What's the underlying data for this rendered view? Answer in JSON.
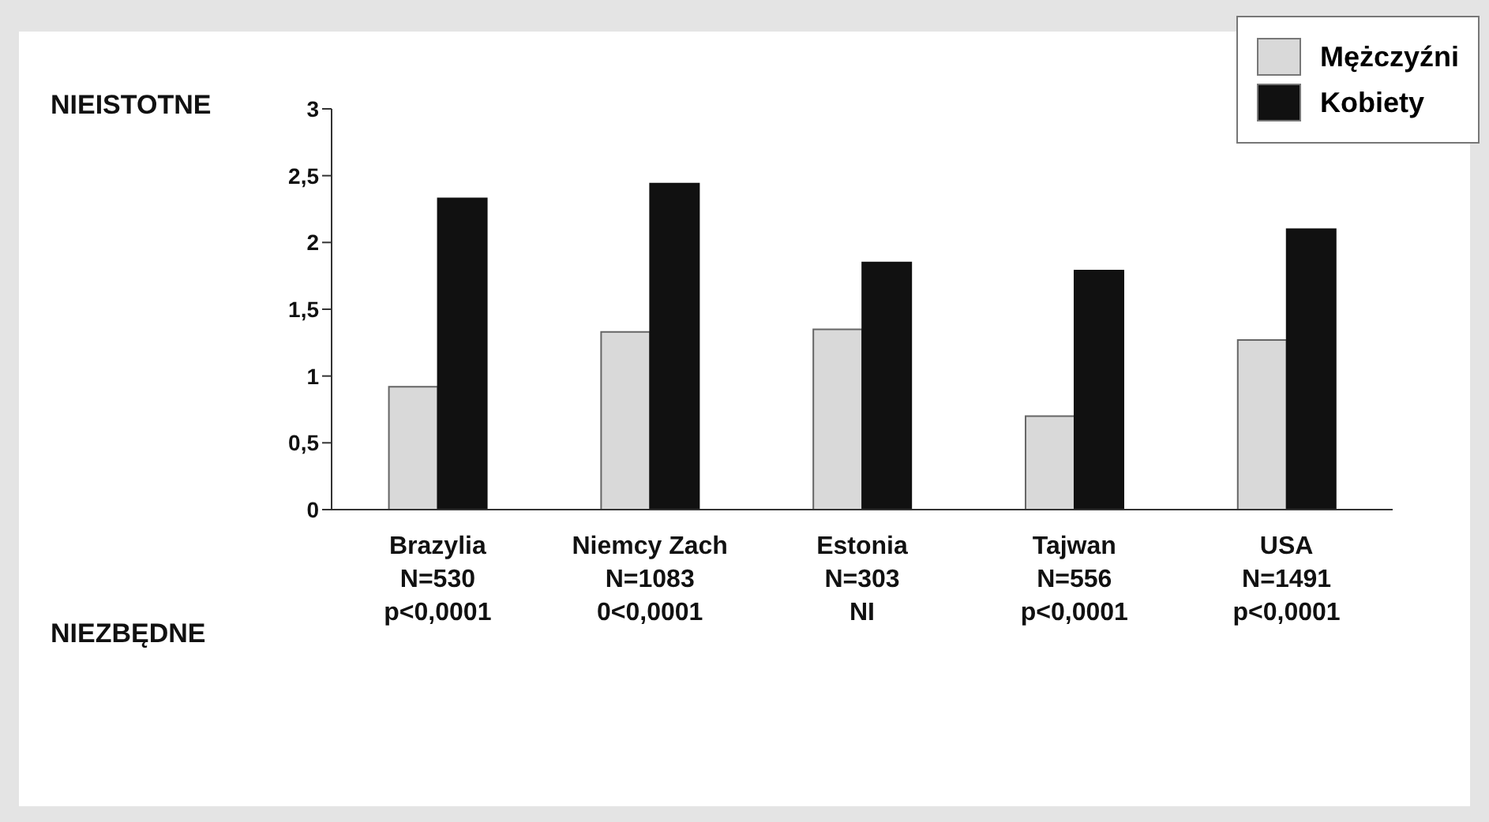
{
  "chart_data": {
    "type": "bar",
    "categories": [
      "Brazylia\nN=530\np<0,0001",
      "Niemcy Zach\nN=1083\n0<0,0001",
      "Estonia\nN=303\nNI",
      "Tajwan\nN=556\np<0,0001",
      "USA\nN=1491\np<0,0001"
    ],
    "series": [
      {
        "name": "Mężczyźni",
        "color": "#d9d9d9",
        "values": [
          0.92,
          1.33,
          1.35,
          0.7,
          1.27
        ]
      },
      {
        "name": "Kobiety",
        "color": "#111111",
        "values": [
          2.33,
          2.44,
          1.85,
          1.79,
          2.1
        ]
      }
    ],
    "ylim": [
      0,
      3
    ],
    "yticks": [
      0,
      {
        "value": 0.5,
        "label": "0,5"
      },
      1,
      {
        "value": 1.5,
        "label": "1,5"
      },
      2,
      {
        "value": 2.5,
        "label": "2,5"
      },
      3
    ],
    "annotations": [
      "NIEISTOTNE",
      "NIEZBĘDNE"
    ],
    "grid": false,
    "legend": "top right"
  }
}
